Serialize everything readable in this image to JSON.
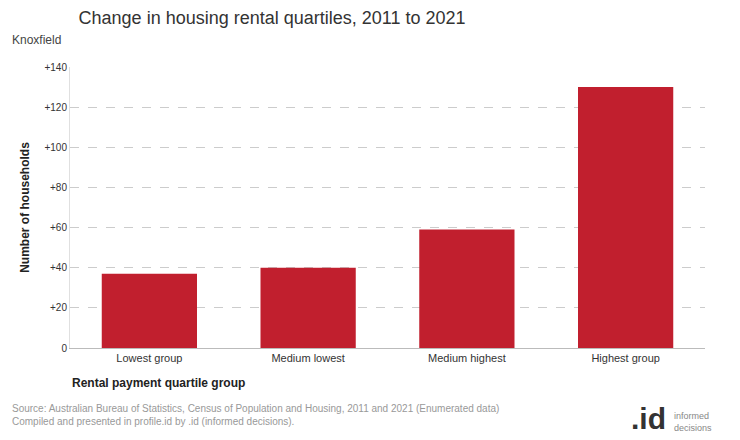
{
  "chart_data": {
    "type": "bar",
    "title": "Change in housing rental quartiles, 2011 to 2021",
    "subtitle": "Knoxfield",
    "x_label": "Rental payment quartile group",
    "y_label": "Number of households",
    "categories": [
      "Lowest group",
      "Medium lowest",
      "Medium highest",
      "Highest group"
    ],
    "values": [
      37,
      40,
      59,
      130
    ],
    "color": "#c11f2e",
    "ylim": [
      0,
      140
    ],
    "yticks": [
      0,
      {
        "value": 20,
        "label": "+20"
      },
      {
        "value": 40,
        "label": "+40"
      },
      {
        "value": 60,
        "label": "+60"
      },
      {
        "value": 80,
        "label": "+80"
      },
      {
        "value": 100,
        "label": "+100"
      },
      {
        "value": 120,
        "label": "+120"
      },
      {
        "value": 140,
        "label": "+140"
      }
    ],
    "grid": true,
    "source": [
      "Source: Australian Bureau of Statistics, Census of Population and Housing, 2011 and 2021 (Enumerated data)",
      "Compiled and presented in profile.id by .id (informed decisions)."
    ],
    "logo": {
      "mark": ".id",
      "caption": "informed decisions"
    }
  }
}
